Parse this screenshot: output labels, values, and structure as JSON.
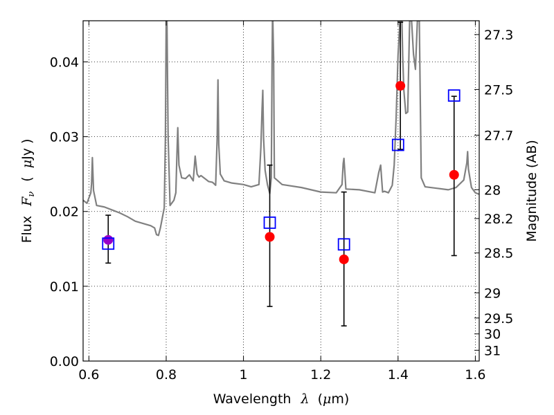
{
  "chart_data": {
    "type": "scatter",
    "xlabel": "Wavelength",
    "xlabel_symbol": "λ",
    "xlabel_unit_open": "(",
    "xlabel_unit_mu": "μ",
    "xlabel_unit_rest": "m)",
    "ylabel": "Flux",
    "ylabel_symbol": "F",
    "ylabel_symbol_sub": "ν",
    "ylabel_unit_open": "(",
    "ylabel_unit_mu": "μ",
    "ylabel_unit_rest": "Jy )",
    "y2label": "Magnitude (AB)",
    "xlim": [
      0.585,
      1.61
    ],
    "ylim": [
      0.0,
      0.0455
    ],
    "grid": true,
    "x_ticks": [
      {
        "v": 0.6,
        "label": "0.6"
      },
      {
        "v": 0.8,
        "label": "0.8"
      },
      {
        "v": 1.0,
        "label": "1"
      },
      {
        "v": 1.2,
        "label": "1.2"
      },
      {
        "v": 1.4,
        "label": "1.4"
      },
      {
        "v": 1.6,
        "label": "1.6"
      }
    ],
    "y_ticks": [
      {
        "v": 0.0,
        "label": "0.00"
      },
      {
        "v": 0.01,
        "label": "0.01"
      },
      {
        "v": 0.02,
        "label": "0.02"
      },
      {
        "v": 0.03,
        "label": "0.03"
      },
      {
        "v": 0.04,
        "label": "0.04"
      }
    ],
    "mag_ticks": [
      {
        "mag": 27.3,
        "label": "27.3"
      },
      {
        "mag": 27.5,
        "label": "27.5"
      },
      {
        "mag": 27.7,
        "label": "27.7"
      },
      {
        "mag": 28.0,
        "label": "28"
      },
      {
        "mag": 28.2,
        "label": "28.2"
      },
      {
        "mag": 28.5,
        "label": "28.5"
      },
      {
        "mag": 29.0,
        "label": "29"
      },
      {
        "mag": 29.5,
        "label": "29.5"
      },
      {
        "mag": 30.0,
        "label": "30"
      },
      {
        "mag": 31.0,
        "label": "31"
      }
    ],
    "observed": [
      {
        "x": 0.65,
        "y": 0.0162,
        "err_lo": 0.0131,
        "err_hi": 0.0195,
        "color": "#9a00c8"
      },
      {
        "x": 1.068,
        "y": 0.0166,
        "err_lo": 0.0073,
        "err_hi": 0.0262,
        "color": "#ff0000"
      },
      {
        "x": 1.26,
        "y": 0.0136,
        "err_lo": 0.0047,
        "err_hi": 0.0226,
        "color": "#ff0000"
      },
      {
        "x": 1.406,
        "y": 0.0368,
        "err_lo": 0.0283,
        "err_hi": 0.0453,
        "color": "#ff0000"
      },
      {
        "x": 1.545,
        "y": 0.0249,
        "err_lo": 0.0141,
        "err_hi": 0.0354,
        "color": "#ff0000"
      }
    ],
    "model_photometry": [
      {
        "x": 0.65,
        "y": 0.0157
      },
      {
        "x": 1.068,
        "y": 0.0185
      },
      {
        "x": 1.26,
        "y": 0.0156
      },
      {
        "x": 1.4,
        "y": 0.0289
      },
      {
        "x": 1.545,
        "y": 0.0355
      }
    ],
    "model_spectrum": {
      "color": "#808080",
      "x": [
        0.585,
        0.595,
        0.6,
        0.605,
        0.607,
        0.609,
        0.612,
        0.62,
        0.64,
        0.66,
        0.68,
        0.7,
        0.72,
        0.74,
        0.76,
        0.77,
        0.775,
        0.78,
        0.785,
        0.795,
        0.798,
        0.8,
        0.802,
        0.805,
        0.81,
        0.82,
        0.825,
        0.828,
        0.83,
        0.833,
        0.84,
        0.85,
        0.86,
        0.87,
        0.875,
        0.88,
        0.885,
        0.89,
        0.9,
        0.91,
        0.92,
        0.928,
        0.932,
        0.934,
        0.936,
        0.94,
        0.95,
        0.97,
        1.0,
        1.02,
        1.04,
        1.045,
        1.048,
        1.05,
        1.052,
        1.056,
        1.062,
        1.068,
        1.072,
        1.074,
        1.075,
        1.076,
        1.078,
        1.08,
        1.1,
        1.15,
        1.2,
        1.24,
        1.255,
        1.258,
        1.26,
        1.262,
        1.265,
        1.3,
        1.34,
        1.35,
        1.355,
        1.358,
        1.36,
        1.365,
        1.375,
        1.385,
        1.39,
        1.395,
        1.4,
        1.405,
        1.41,
        1.412,
        1.415,
        1.42,
        1.425,
        1.43,
        1.435,
        1.44,
        1.445,
        1.45,
        1.455,
        1.46,
        1.47,
        1.5,
        1.53,
        1.55,
        1.57,
        1.578,
        1.58,
        1.582,
        1.59,
        1.6,
        1.61
      ],
      "y": [
        0.0215,
        0.0211,
        0.0218,
        0.0225,
        0.0238,
        0.0272,
        0.0228,
        0.0208,
        0.0206,
        0.0202,
        0.0198,
        0.0193,
        0.0187,
        0.0184,
        0.0181,
        0.0178,
        0.0169,
        0.0168,
        0.0178,
        0.0205,
        0.03,
        0.0455,
        0.0455,
        0.03,
        0.0208,
        0.0215,
        0.0225,
        0.028,
        0.0312,
        0.0262,
        0.0245,
        0.0244,
        0.0249,
        0.0241,
        0.0274,
        0.025,
        0.0246,
        0.0248,
        0.0244,
        0.024,
        0.0239,
        0.0235,
        0.03,
        0.0376,
        0.029,
        0.025,
        0.0241,
        0.0238,
        0.0236,
        0.0233,
        0.0236,
        0.0285,
        0.0336,
        0.0362,
        0.0298,
        0.0255,
        0.0236,
        0.0224,
        0.0245,
        0.0405,
        0.0455,
        0.0455,
        0.0405,
        0.0245,
        0.0236,
        0.0232,
        0.0226,
        0.0225,
        0.0236,
        0.0264,
        0.0271,
        0.0255,
        0.023,
        0.0229,
        0.0225,
        0.0252,
        0.0262,
        0.024,
        0.0226,
        0.0227,
        0.0225,
        0.0235,
        0.0262,
        0.0325,
        0.0409,
        0.0455,
        0.0455,
        0.0408,
        0.0362,
        0.0331,
        0.0333,
        0.0455,
        0.0455,
        0.041,
        0.039,
        0.0455,
        0.0455,
        0.0245,
        0.0233,
        0.0231,
        0.0229,
        0.0232,
        0.0242,
        0.0265,
        0.028,
        0.0257,
        0.0232,
        0.0225,
        0.0223
      ]
    }
  }
}
